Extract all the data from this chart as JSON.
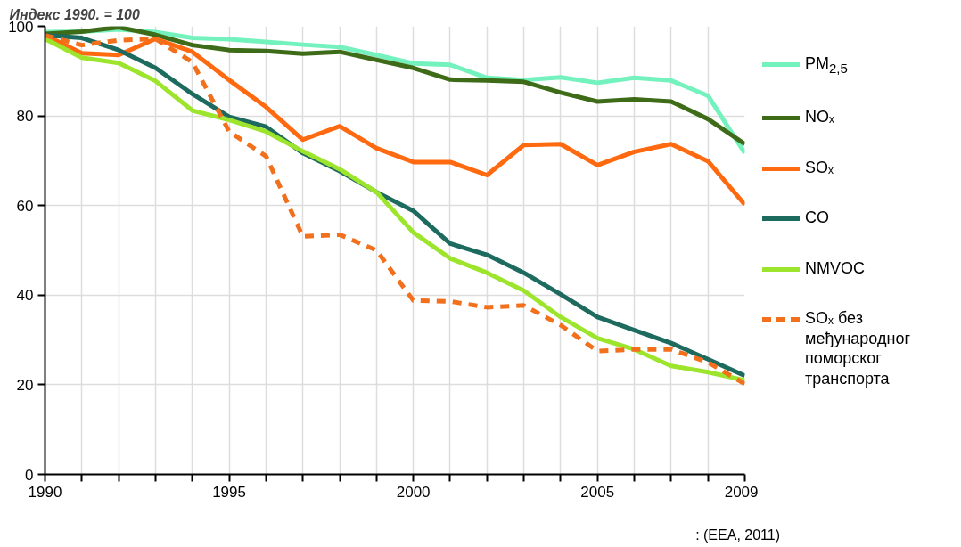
{
  "chart_data": {
    "type": "line",
    "ylabel": "Индекс 1990. = 100",
    "x": [
      1990,
      1991,
      1992,
      1993,
      1994,
      1995,
      1996,
      1997,
      1998,
      1999,
      2000,
      2001,
      2002,
      2003,
      2004,
      2005,
      2006,
      2007,
      2008,
      2009
    ],
    "series": [
      {
        "name": "PM$_{2,5}$",
        "color": "#74f2bd",
        "values": [
          98.7,
          98.8,
          99.3,
          98.7,
          97.4,
          97.1,
          96.5,
          95.9,
          95.4,
          93.6,
          91.7,
          91.4,
          88.5,
          88,
          88.6,
          87.4,
          88.5,
          87.9,
          84.5,
          71.7
        ]
      },
      {
        "name": "NOₓ",
        "color": "#3d6b17",
        "values": [
          98.3,
          98.8,
          99.8,
          98.1,
          95.8,
          94.7,
          94.5,
          93.9,
          94.3,
          92.5,
          90.7,
          88.1,
          87.9,
          87.6,
          85.2,
          83.2,
          83.7,
          83.2,
          79.3,
          73.7
        ]
      },
      {
        "name": "SOₓ",
        "color": "#ff6a10",
        "values": [
          98,
          94,
          93.6,
          97.2,
          94.3,
          88,
          82,
          74.7,
          77.7,
          72.8,
          69.7,
          69.7,
          66.8,
          73.5,
          73.7,
          69,
          72,
          73.7,
          69.9,
          60.2
        ]
      },
      {
        "name": "CO",
        "color": "#1d6a5e",
        "values": [
          98,
          97.4,
          94.7,
          90.7,
          84.9,
          79.8,
          77.6,
          71.7,
          67.7,
          63,
          58.8,
          51.5,
          49,
          45,
          40.2,
          35.1,
          32.2,
          29.3,
          25.7,
          22
        ]
      },
      {
        "name": "NMVOC",
        "color": "#9de52c",
        "values": [
          97.2,
          93,
          91.8,
          87.8,
          81.2,
          79.1,
          76.5,
          72.1,
          68.1,
          63,
          54,
          48.2,
          45,
          41,
          35.1,
          30.4,
          27.9,
          24.2,
          22.8,
          21
        ]
      },
      {
        "name": "SOₓ без међународног поморског транспорта",
        "color": "#f26f1c",
        "line_style": "dashed",
        "values": [
          98,
          95.8,
          96.9,
          97.2,
          92,
          76.5,
          71,
          53.1,
          53.5,
          50,
          38.8,
          38.6,
          37.3,
          37.7,
          33.3,
          27.5,
          27.9,
          27.9,
          25,
          20.2
        ]
      }
    ],
    "xlim": [
      1990,
      2009
    ],
    "ylim": [
      0,
      100
    ],
    "xticks": [
      1990,
      {
        "value": 1991,
        "label": null
      },
      {
        "value": 1992,
        "label": null
      },
      {
        "value": 1993,
        "label": null
      },
      {
        "value": 1994,
        "label": null
      },
      1995,
      {
        "value": 1996,
        "label": null
      },
      {
        "value": 1997,
        "label": null
      },
      {
        "value": 1998,
        "label": null
      },
      {
        "value": 1999,
        "label": null
      },
      2000,
      {
        "value": 2001,
        "label": null
      },
      {
        "value": 2002,
        "label": null
      },
      {
        "value": 2003,
        "label": null
      },
      {
        "value": 2004,
        "label": null
      },
      2005,
      {
        "value": 2006,
        "label": null
      },
      {
        "value": 2007,
        "label": null
      },
      {
        "value": 2008,
        "label": null
      },
      2009
    ],
    "yticks": [
      0,
      20,
      40,
      60,
      80,
      100
    ],
    "grid": true,
    "legend": "right",
    "line_style": "solid",
    "annotations": [
      ": (EEA, 2011)"
    ]
  }
}
